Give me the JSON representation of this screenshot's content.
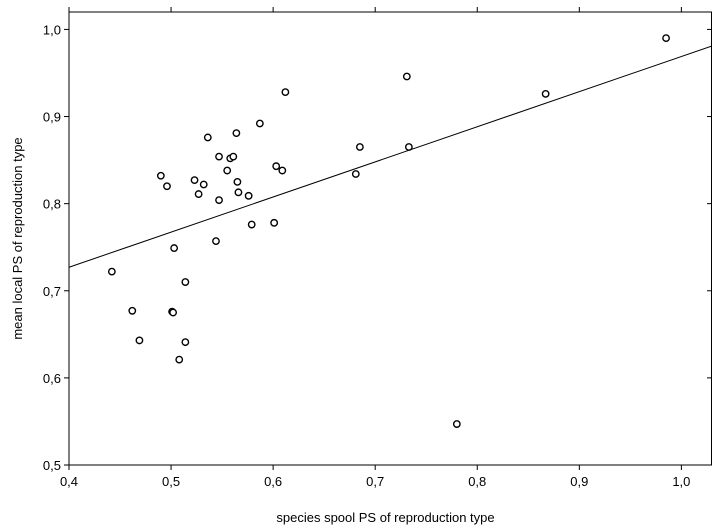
{
  "chart_data": {
    "type": "scatter",
    "xlabel": "species spool PS of reproduction type",
    "ylabel": "mean local PS of reproduction type",
    "xlim": [
      0.4,
      1.03
    ],
    "ylim": [
      0.5,
      1.02
    ],
    "xticks": [
      0.4,
      0.5,
      0.6,
      0.7,
      0.8,
      0.9,
      1.0
    ],
    "yticks": [
      0.5,
      0.6,
      0.7,
      0.8,
      0.9,
      1.0
    ],
    "xtick_labels": [
      "0,4",
      "0,5",
      "0,6",
      "0,7",
      "0,8",
      "0,9",
      "1,0"
    ],
    "ytick_labels": [
      "0,5",
      "0,6",
      "0,7",
      "0,8",
      "0,9",
      "1,0"
    ],
    "grid": false,
    "regression_line": {
      "x": [
        0.4,
        1.03
      ],
      "y": [
        0.727,
        0.981
      ]
    },
    "points": [
      {
        "x": 0.442,
        "y": 0.722
      },
      {
        "x": 0.462,
        "y": 0.677
      },
      {
        "x": 0.469,
        "y": 0.643
      },
      {
        "x": 0.49,
        "y": 0.832
      },
      {
        "x": 0.496,
        "y": 0.82
      },
      {
        "x": 0.501,
        "y": 0.676
      },
      {
        "x": 0.502,
        "y": 0.675
      },
      {
        "x": 0.503,
        "y": 0.749
      },
      {
        "x": 0.508,
        "y": 0.621
      },
      {
        "x": 0.514,
        "y": 0.71
      },
      {
        "x": 0.514,
        "y": 0.641
      },
      {
        "x": 0.523,
        "y": 0.827
      },
      {
        "x": 0.527,
        "y": 0.811
      },
      {
        "x": 0.532,
        "y": 0.822
      },
      {
        "x": 0.536,
        "y": 0.876
      },
      {
        "x": 0.544,
        "y": 0.757
      },
      {
        "x": 0.547,
        "y": 0.854
      },
      {
        "x": 0.547,
        "y": 0.804
      },
      {
        "x": 0.555,
        "y": 0.838
      },
      {
        "x": 0.558,
        "y": 0.852
      },
      {
        "x": 0.561,
        "y": 0.854
      },
      {
        "x": 0.564,
        "y": 0.881
      },
      {
        "x": 0.565,
        "y": 0.825
      },
      {
        "x": 0.566,
        "y": 0.813
      },
      {
        "x": 0.576,
        "y": 0.809
      },
      {
        "x": 0.579,
        "y": 0.776
      },
      {
        "x": 0.587,
        "y": 0.892
      },
      {
        "x": 0.601,
        "y": 0.778
      },
      {
        "x": 0.603,
        "y": 0.843
      },
      {
        "x": 0.609,
        "y": 0.838
      },
      {
        "x": 0.612,
        "y": 0.928
      },
      {
        "x": 0.681,
        "y": 0.834
      },
      {
        "x": 0.685,
        "y": 0.865
      },
      {
        "x": 0.731,
        "y": 0.946
      },
      {
        "x": 0.733,
        "y": 0.865
      },
      {
        "x": 0.78,
        "y": 0.547
      },
      {
        "x": 0.867,
        "y": 0.926
      },
      {
        "x": 0.985,
        "y": 0.99
      }
    ]
  }
}
